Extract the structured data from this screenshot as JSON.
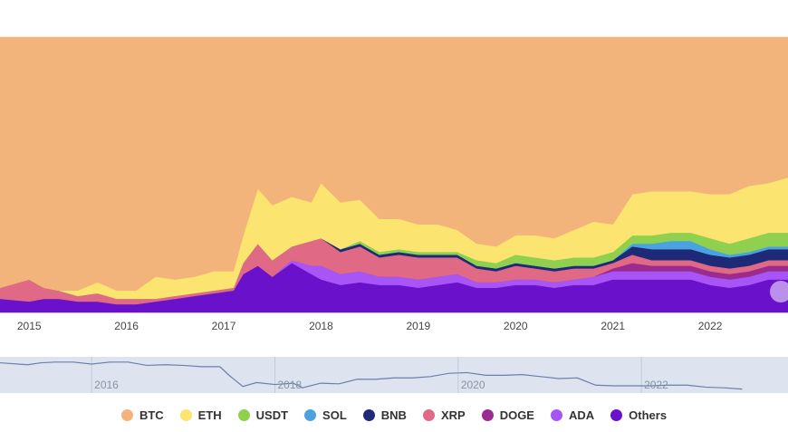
{
  "chart_data": {
    "type": "area",
    "stacked": "percent",
    "x": [
      2014.7,
      2015.0,
      2015.15,
      2015.3,
      2015.5,
      2015.7,
      2015.9,
      2016.1,
      2016.3,
      2016.5,
      2016.7,
      2016.9,
      2017.1,
      2017.2,
      2017.35,
      2017.5,
      2017.7,
      2017.9,
      2018.0,
      2018.2,
      2018.4,
      2018.6,
      2018.8,
      2019.0,
      2019.2,
      2019.4,
      2019.6,
      2019.8,
      2020.0,
      2020.2,
      2020.4,
      2020.6,
      2020.8,
      2021.0,
      2021.2,
      2021.4,
      2021.6,
      2021.8,
      2022.0,
      2022.2,
      2022.4,
      2022.6,
      2022.8
    ],
    "x_ticks": [
      "2015",
      "2016",
      "2017",
      "2018",
      "2019",
      "2020",
      "2021",
      "2022"
    ],
    "x_tick_values": [
      2015,
      2016,
      2017,
      2018,
      2019,
      2020,
      2021,
      2022
    ],
    "xlim": [
      2014.7,
      2022.8
    ],
    "ylim": [
      0,
      100
    ],
    "grid": false,
    "legend_position": "bottom",
    "series": [
      {
        "name": "Others",
        "color": "#6a11cb",
        "values": [
          5,
          4,
          5,
          5,
          4,
          4,
          3,
          3,
          4,
          5,
          6,
          7,
          8,
          14,
          17,
          13,
          18,
          14,
          12,
          10,
          11,
          10,
          10,
          9,
          10,
          11,
          9,
          9,
          10,
          10,
          9,
          10,
          10,
          12,
          12,
          12,
          12,
          12,
          10,
          9,
          10,
          12,
          12
        ]
      },
      {
        "name": "ADA",
        "color": "#a855f7",
        "values": [
          0,
          0,
          0,
          0,
          0,
          0,
          0,
          0,
          0,
          0,
          0,
          0,
          0,
          0,
          0,
          0,
          1,
          3,
          5,
          4,
          4,
          3,
          3,
          3,
          3,
          3,
          2,
          2,
          2,
          2,
          2,
          2,
          3,
          3,
          3,
          3,
          3,
          3,
          3,
          3,
          3,
          3,
          3
        ]
      },
      {
        "name": "DOGE",
        "color": "#9b2b8f",
        "values": [
          0,
          0,
          0,
          0,
          0,
          0,
          0,
          0,
          0,
          0,
          0,
          0,
          0,
          0,
          0,
          0,
          0,
          0,
          0,
          0,
          0,
          0,
          0,
          0,
          0,
          0,
          0,
          0,
          0,
          0,
          0,
          0,
          0,
          1,
          3,
          2,
          2,
          2,
          2,
          2,
          2,
          2,
          2
        ]
      },
      {
        "name": "XRP",
        "color": "#e06a85",
        "values": [
          4,
          8,
          4,
          3,
          2,
          3,
          2,
          2,
          1,
          1,
          1,
          1,
          1,
          4,
          8,
          6,
          5,
          9,
          10,
          8,
          9,
          7,
          8,
          8,
          7,
          6,
          5,
          4,
          5,
          4,
          4,
          4,
          3,
          2,
          3,
          2,
          2,
          2,
          2,
          2,
          2,
          2,
          2
        ]
      },
      {
        "name": "BNB",
        "color": "#1e2a78",
        "values": [
          0,
          0,
          0,
          0,
          0,
          0,
          0,
          0,
          0,
          0,
          0,
          0,
          0,
          0,
          0,
          0,
          0,
          0,
          0,
          1,
          1,
          1,
          1,
          1,
          1,
          1,
          1,
          1,
          1,
          1,
          1,
          1,
          1,
          1,
          3,
          4,
          4,
          4,
          4,
          4,
          4,
          4,
          4
        ]
      },
      {
        "name": "SOL",
        "color": "#4aa3df",
        "values": [
          0,
          0,
          0,
          0,
          0,
          0,
          0,
          0,
          0,
          0,
          0,
          0,
          0,
          0,
          0,
          0,
          0,
          0,
          0,
          0,
          0,
          0,
          0,
          0,
          0,
          0,
          0,
          0,
          0,
          0,
          0,
          0,
          0,
          0,
          1,
          2,
          3,
          3,
          2,
          1,
          1,
          1,
          1
        ]
      },
      {
        "name": "USDT",
        "color": "#8fd14f",
        "values": [
          0,
          0,
          0,
          0,
          0,
          0,
          0,
          0,
          0,
          0,
          0,
          0,
          0,
          0,
          0,
          0,
          0,
          0,
          0,
          0,
          1,
          1,
          1,
          1,
          1,
          1,
          2,
          2,
          3,
          3,
          3,
          3,
          3,
          3,
          3,
          3,
          3,
          3,
          4,
          4,
          5,
          5,
          5
        ]
      },
      {
        "name": "ETH",
        "color": "#fbe46f",
        "values": [
          0,
          0,
          0,
          0,
          2,
          4,
          3,
          3,
          8,
          6,
          6,
          7,
          6,
          10,
          20,
          20,
          18,
          14,
          20,
          17,
          15,
          12,
          11,
          10,
          10,
          8,
          6,
          6,
          7,
          8,
          8,
          10,
          13,
          10,
          15,
          16,
          15,
          15,
          16,
          18,
          19,
          18,
          20
        ]
      },
      {
        "name": "BTC",
        "color": "#f3b47c",
        "values": [
          91,
          88,
          91,
          92,
          92,
          89,
          92,
          92,
          87,
          88,
          87,
          85,
          85,
          72,
          55,
          61,
          58,
          60,
          53,
          60,
          59,
          66,
          66,
          68,
          68,
          70,
          75,
          76,
          72,
          72,
          73,
          70,
          67,
          68,
          57,
          56,
          56,
          56,
          57,
          57,
          54,
          53,
          51
        ]
      }
    ],
    "navigator": {
      "x_ticks": [
        "2016",
        "2018",
        "2020",
        "2022"
      ],
      "x_tick_values": [
        2016,
        2018,
        2020,
        2022
      ],
      "xlim": [
        2015.0,
        2023.6
      ]
    }
  },
  "legend": {
    "items": [
      {
        "label": "BTC",
        "color": "#f3b47c",
        "name": "legend-btc"
      },
      {
        "label": "ETH",
        "color": "#fbe46f",
        "name": "legend-eth"
      },
      {
        "label": "USDT",
        "color": "#8fd14f",
        "name": "legend-usdt"
      },
      {
        "label": "SOL",
        "color": "#4aa3df",
        "name": "legend-sol"
      },
      {
        "label": "BNB",
        "color": "#1e2a78",
        "name": "legend-bnb"
      },
      {
        "label": "XRP",
        "color": "#e06a85",
        "name": "legend-xrp"
      },
      {
        "label": "DOGE",
        "color": "#9b2b8f",
        "name": "legend-doge"
      },
      {
        "label": "ADA",
        "color": "#a855f7",
        "name": "legend-ada"
      },
      {
        "label": "Others",
        "color": "#6a11cb",
        "name": "legend-others"
      }
    ]
  },
  "colors": {
    "navigator_bg": "#dde4f0",
    "navigator_line": "#6b7fa8",
    "handle": "#c9a7f0"
  }
}
